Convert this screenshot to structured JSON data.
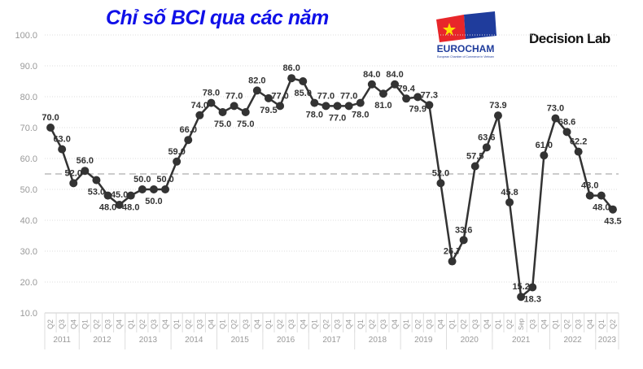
{
  "header": {
    "title": "Chỉ số BCI qua các năm",
    "logo_eurocham": "EUROCHAM",
    "logo_eurocham_sub": "European Chamber of Commerce in Vietnam",
    "logo_decision_lab": "Decision Lab"
  },
  "chart_data": {
    "type": "line",
    "title": "Chỉ số BCI qua các năm",
    "ylim": [
      10,
      100
    ],
    "yticks": [
      "10.0",
      "20.0",
      "30.0",
      "40.0",
      "50.0",
      "60.0",
      "70.0",
      "80.0",
      "90.0",
      "100.0"
    ],
    "grid": true,
    "reference_line": 55,
    "categories": [
      "Q2",
      "Q3",
      "Q4",
      "Q1",
      "Q2",
      "Q3",
      "Q4",
      "Q1",
      "Q2",
      "Q3",
      "Q4",
      "Q1",
      "Q2",
      "Q3",
      "Q4",
      "Q1",
      "Q2",
      "Q3",
      "Q4",
      "Q1",
      "Q2",
      "Q3",
      "Q4",
      "Q1",
      "Q2",
      "Q3",
      "Q4",
      "Q1",
      "Q2",
      "Q3",
      "Q4",
      "Q1",
      "Q2",
      "Q3",
      "Q4",
      "Q1",
      "Q2",
      "Q3",
      "Q4",
      "Q1",
      "Q2",
      "Sep",
      "Q3",
      "Q4",
      "Q1",
      "Q2",
      "Q3",
      "Q4",
      "Q1",
      "Q2"
    ],
    "years": [
      {
        "label": "2011",
        "count": 3
      },
      {
        "label": "2012",
        "count": 4
      },
      {
        "label": "2013",
        "count": 4
      },
      {
        "label": "2014",
        "count": 4
      },
      {
        "label": "2015",
        "count": 4
      },
      {
        "label": "2016",
        "count": 4
      },
      {
        "label": "2017",
        "count": 4
      },
      {
        "label": "2018",
        "count": 4
      },
      {
        "label": "2019",
        "count": 4
      },
      {
        "label": "2020",
        "count": 4
      },
      {
        "label": "2021",
        "count": 5
      },
      {
        "label": "2022",
        "count": 4
      },
      {
        "label": "2023",
        "count": 2
      }
    ],
    "values": [
      70.0,
      63.0,
      52.0,
      56.0,
      53.0,
      48.0,
      45.0,
      48.0,
      50.0,
      50.0,
      50.0,
      59.0,
      66.0,
      74.0,
      78.0,
      75.0,
      77.0,
      75.0,
      82.0,
      79.5,
      77.0,
      86.0,
      85.0,
      78.0,
      77.0,
      77.0,
      77.0,
      78.0,
      84.0,
      81.0,
      84.0,
      79.4,
      79.9,
      77.3,
      52.0,
      26.7,
      33.6,
      57.5,
      63.6,
      73.9,
      45.8,
      15.2,
      18.3,
      61.0,
      73.0,
      68.6,
      62.2,
      48.0,
      48.0,
      43.5
    ],
    "colors": {
      "line": "#333333",
      "point": "#333333",
      "grid": "#dddddd",
      "reference": "#bbbbbb",
      "title": "#1010e8"
    }
  }
}
